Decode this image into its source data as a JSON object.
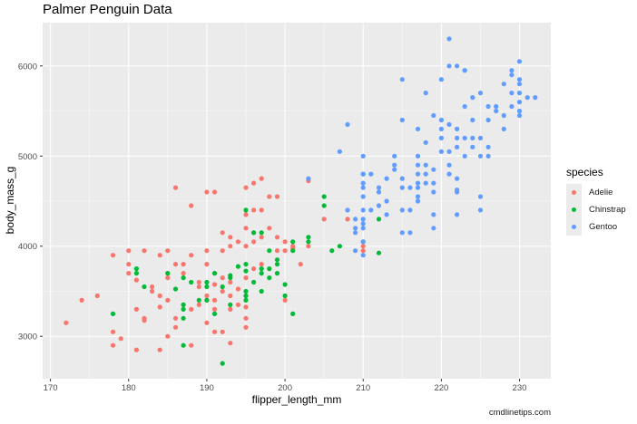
{
  "title": "Palmer Penguin Data",
  "caption": "cmdlinetips.com",
  "legend": {
    "title": "species",
    "items": [
      {
        "label": "Adelie",
        "color": "#F8766D"
      },
      {
        "label": "Chinstrap",
        "color": "#00BA38"
      },
      {
        "label": "Gentoo",
        "color": "#619CFF"
      }
    ]
  },
  "colors": {
    "panel_background": "#EBEBEB",
    "grid_major": "#FFFFFF",
    "axis_text": "#4D4D4D"
  },
  "chart_data": {
    "type": "scatter",
    "title": "Palmer Penguin Data",
    "xlabel": "flipper_length_mm",
    "ylabel": "body_mass_g",
    "xlim": [
      169,
      234
    ],
    "ylim": [
      2530,
      6480
    ],
    "xticks": [
      170,
      180,
      190,
      200,
      210,
      220,
      230
    ],
    "yticks": [
      3000,
      4000,
      5000,
      6000
    ],
    "grid": true,
    "legend_position": "right",
    "caption": "cmdlinetips.com",
    "series": [
      {
        "name": "Adelie",
        "color": "#F8766D",
        "points": [
          [
            172,
            3150
          ],
          [
            174,
            3400
          ],
          [
            176,
            3450
          ],
          [
            178,
            3900
          ],
          [
            178,
            3050
          ],
          [
            178,
            2900
          ],
          [
            179,
            2975
          ],
          [
            180,
            3950
          ],
          [
            180,
            3800
          ],
          [
            180,
            3700
          ],
          [
            181,
            3625
          ],
          [
            181,
            3300
          ],
          [
            181,
            2850
          ],
          [
            182,
            3175
          ],
          [
            182,
            3200
          ],
          [
            182,
            3950
          ],
          [
            183,
            3550
          ],
          [
            183,
            3500
          ],
          [
            184,
            3325
          ],
          [
            184,
            3900
          ],
          [
            184,
            2850
          ],
          [
            184,
            3450
          ],
          [
            185,
            3700
          ],
          [
            185,
            3400
          ],
          [
            185,
            3000
          ],
          [
            185,
            3650
          ],
          [
            185,
            3950
          ],
          [
            186,
            4650
          ],
          [
            186,
            3800
          ],
          [
            186,
            3100
          ],
          [
            186,
            3200
          ],
          [
            187,
            3350
          ],
          [
            187,
            3700
          ],
          [
            187,
            3800
          ],
          [
            188,
            3900
          ],
          [
            188,
            3300
          ],
          [
            188,
            2900
          ],
          [
            188,
            4450
          ],
          [
            189,
            3350
          ],
          [
            189,
            3550
          ],
          [
            189,
            3600
          ],
          [
            190,
            3450
          ],
          [
            190,
            4600
          ],
          [
            190,
            3400
          ],
          [
            190,
            3150
          ],
          [
            190,
            3800
          ],
          [
            190,
            3950
          ],
          [
            191,
            4600
          ],
          [
            191,
            3300
          ],
          [
            191,
            3050
          ],
          [
            191,
            3575
          ],
          [
            191,
            3400
          ],
          [
            191,
            3700
          ],
          [
            192,
            3650
          ],
          [
            192,
            3950
          ],
          [
            192,
            3500
          ],
          [
            192,
            3050
          ],
          [
            192,
            4150
          ],
          [
            193,
            4100
          ],
          [
            193,
            3300
          ],
          [
            193,
            2925
          ],
          [
            193,
            3450
          ],
          [
            193,
            4000
          ],
          [
            193,
            3600
          ],
          [
            194,
            3525
          ],
          [
            194,
            3350
          ],
          [
            194,
            4050
          ],
          [
            195,
            3200
          ],
          [
            195,
            3325
          ],
          [
            195,
            4000
          ],
          [
            195,
            4200
          ],
          [
            195,
            4350
          ],
          [
            195,
            4650
          ],
          [
            195,
            3650
          ],
          [
            195,
            3450
          ],
          [
            195,
            3100
          ],
          [
            196,
            3750
          ],
          [
            196,
            4700
          ],
          [
            196,
            4150
          ],
          [
            196,
            4400
          ],
          [
            196,
            4050
          ],
          [
            197,
            4750
          ],
          [
            197,
            4400
          ],
          [
            197,
            4100
          ],
          [
            197,
            3800
          ],
          [
            198,
            4550
          ],
          [
            198,
            4200
          ],
          [
            199,
            4550
          ],
          [
            199,
            4100
          ],
          [
            199,
            3950
          ],
          [
            200,
            3400
          ],
          [
            200,
            4050
          ],
          [
            200,
            3950
          ],
          [
            201,
            3975
          ],
          [
            201,
            4000
          ],
          [
            202,
            3800
          ],
          [
            203,
            4725
          ],
          [
            203,
            4000
          ],
          [
            205,
            4300
          ],
          [
            208,
            4300
          ],
          [
            210,
            3950
          ],
          [
            210,
            4000
          ]
        ]
      },
      {
        "name": "Chinstrap",
        "color": "#00BA38",
        "points": [
          [
            178,
            3250
          ],
          [
            181,
            3700
          ],
          [
            181,
            3750
          ],
          [
            182,
            3550
          ],
          [
            185,
            3700
          ],
          [
            186,
            3525
          ],
          [
            187,
            3650
          ],
          [
            187,
            3300
          ],
          [
            187,
            3200
          ],
          [
            187,
            2900
          ],
          [
            187,
            3350
          ],
          [
            188,
            3600
          ],
          [
            189,
            3400
          ],
          [
            190,
            3600
          ],
          [
            190,
            3400
          ],
          [
            190,
            3550
          ],
          [
            191,
            3250
          ],
          [
            191,
            3700
          ],
          [
            192,
            2700
          ],
          [
            192,
            3550
          ],
          [
            193,
            3650
          ],
          [
            193,
            3675
          ],
          [
            193,
            3350
          ],
          [
            194,
            3775
          ],
          [
            195,
            3725
          ],
          [
            195,
            3800
          ],
          [
            195,
            3500
          ],
          [
            195,
            3450
          ],
          [
            195,
            3400
          ],
          [
            195,
            4400
          ],
          [
            196,
            3600
          ],
          [
            196,
            4150
          ],
          [
            197,
            3700
          ],
          [
            197,
            3750
          ],
          [
            197,
            3500
          ],
          [
            197,
            4150
          ],
          [
            198,
            3950
          ],
          [
            198,
            3650
          ],
          [
            198,
            3750
          ],
          [
            199,
            3800
          ],
          [
            199,
            3850
          ],
          [
            199,
            3700
          ],
          [
            200,
            3575
          ],
          [
            200,
            3450
          ],
          [
            201,
            3250
          ],
          [
            201,
            3950
          ],
          [
            201,
            4050
          ],
          [
            203,
            4100
          ],
          [
            203,
            4050
          ],
          [
            205,
            4450
          ],
          [
            205,
            4550
          ],
          [
            206,
            3950
          ],
          [
            207,
            4000
          ],
          [
            210,
            4050
          ],
          [
            210,
            4800
          ],
          [
            212,
            4300
          ],
          [
            212,
            3925
          ]
        ]
      },
      {
        "name": "Gentoo",
        "color": "#619CFF",
        "points": [
          [
            203,
            4750
          ],
          [
            207,
            5050
          ],
          [
            208,
            5350
          ],
          [
            208,
            4400
          ],
          [
            209,
            4200
          ],
          [
            209,
            4150
          ],
          [
            209,
            3950
          ],
          [
            209,
            4300
          ],
          [
            210,
            4400
          ],
          [
            210,
            4250
          ],
          [
            210,
            4700
          ],
          [
            210,
            4650
          ],
          [
            210,
            4550
          ],
          [
            210,
            4300
          ],
          [
            210,
            4200
          ],
          [
            210,
            4050
          ],
          [
            210,
            3900
          ],
          [
            210,
            4800
          ],
          [
            210,
            5000
          ],
          [
            211,
            4800
          ],
          [
            211,
            4400
          ],
          [
            212,
            4450
          ],
          [
            212,
            4600
          ],
          [
            212,
            4650
          ],
          [
            213,
            4500
          ],
          [
            213,
            4350
          ],
          [
            213,
            4750
          ],
          [
            214,
            4850
          ],
          [
            214,
            4900
          ],
          [
            214,
            5000
          ],
          [
            215,
            5850
          ],
          [
            215,
            5400
          ],
          [
            215,
            4400
          ],
          [
            215,
            4150
          ],
          [
            215,
            4650
          ],
          [
            215,
            4750
          ],
          [
            216,
            4650
          ],
          [
            216,
            4150
          ],
          [
            216,
            4400
          ],
          [
            217,
            5300
          ],
          [
            217,
            5000
          ],
          [
            217,
            4900
          ],
          [
            217,
            4800
          ],
          [
            217,
            4700
          ],
          [
            217,
            4650
          ],
          [
            217,
            4550
          ],
          [
            217,
            4500
          ],
          [
            218,
            5700
          ],
          [
            218,
            4700
          ],
          [
            218,
            4800
          ],
          [
            218,
            4900
          ],
          [
            218,
            5150
          ],
          [
            219,
            5450
          ],
          [
            219,
            4850
          ],
          [
            219,
            4200
          ],
          [
            219,
            4700
          ],
          [
            219,
            4600
          ],
          [
            219,
            4350
          ],
          [
            220,
            5050
          ],
          [
            220,
            5200
          ],
          [
            220,
            5300
          ],
          [
            220,
            5400
          ],
          [
            220,
            5850
          ],
          [
            221,
            5350
          ],
          [
            221,
            5050
          ],
          [
            221,
            4900
          ],
          [
            221,
            4800
          ],
          [
            222,
            5100
          ],
          [
            222,
            5200
          ],
          [
            222,
            5300
          ],
          [
            222,
            4750
          ],
          [
            222,
            4600
          ],
          [
            222,
            4625
          ],
          [
            222,
            4350
          ],
          [
            223,
            5200
          ],
          [
            223,
            5550
          ],
          [
            223,
            5950
          ],
          [
            223,
            5000
          ],
          [
            224,
            5650
          ],
          [
            224,
            5400
          ],
          [
            224,
            5100
          ],
          [
            224,
            5200
          ],
          [
            225,
            5700
          ],
          [
            225,
            5200
          ],
          [
            225,
            5000
          ],
          [
            225,
            4550
          ],
          [
            225,
            4400
          ],
          [
            226,
            5400
          ],
          [
            226,
            5550
          ],
          [
            226,
            5100
          ],
          [
            227,
            5500
          ],
          [
            227,
            5550
          ],
          [
            228,
            5450
          ],
          [
            228,
            5300
          ],
          [
            229,
            5550
          ],
          [
            229,
            5700
          ],
          [
            229,
            5900
          ],
          [
            230,
            5700
          ],
          [
            230,
            5500
          ],
          [
            230,
            5450
          ],
          [
            230,
            5800
          ],
          [
            230,
            5850
          ],
          [
            230,
            6050
          ],
          [
            230,
            5600
          ],
          [
            231,
            5650
          ],
          [
            228,
            5800
          ],
          [
            232,
            5650
          ],
          [
            221,
            6300
          ],
          [
            221,
            6000
          ],
          [
            222,
            6000
          ],
          [
            223,
            5950
          ],
          [
            226,
            5000
          ],
          [
            229,
            5950
          ]
        ]
      }
    ]
  }
}
